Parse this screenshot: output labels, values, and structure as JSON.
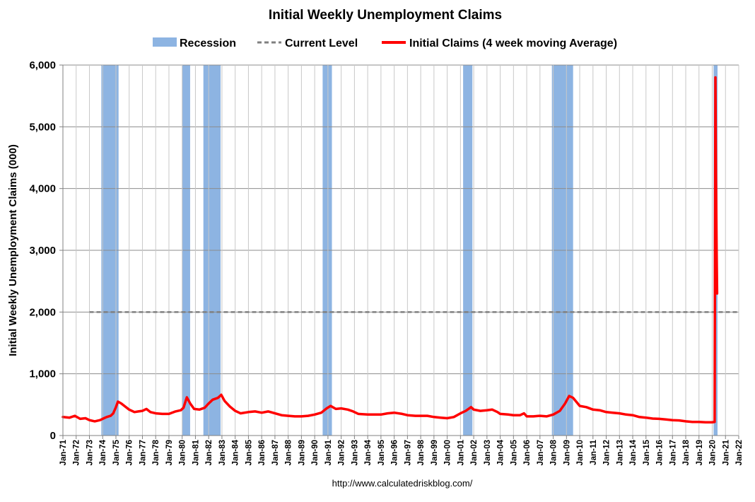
{
  "chart_data": {
    "type": "line",
    "title": "Initial Weekly Unemployment Claims",
    "ylabel": "Initial Weekly Unemployment Claims (000)",
    "xlabel": "",
    "source": "http://www.calculatedriskblog.com/",
    "ylim": [
      0,
      6000
    ],
    "yticks": [
      "0",
      "1,000",
      "2,000",
      "3,000",
      "4,000",
      "5,000",
      "6,000"
    ],
    "xlim": [
      1971.0,
      2022.0
    ],
    "xticks": [
      "Jan-71",
      "Jan-72",
      "Jan-73",
      "Jan-74",
      "Jan-75",
      "Jan-76",
      "Jan-77",
      "Jan-78",
      "Jan-79",
      "Jan-80",
      "Jan-81",
      "Jan-82",
      "Jan-83",
      "Jan-84",
      "Jan-85",
      "Jan-86",
      "Jan-87",
      "Jan-88",
      "Jan-89",
      "Jan-90",
      "Jan-91",
      "Jan-92",
      "Jan-93",
      "Jan-94",
      "Jan-95",
      "Jan-96",
      "Jan-97",
      "Jan-98",
      "Jan-99",
      "Jan-00",
      "Jan-01",
      "Jan-02",
      "Jan-03",
      "Jan-04",
      "Jan-05",
      "Jan-06",
      "Jan-07",
      "Jan-08",
      "Jan-09",
      "Jan-10",
      "Jan-11",
      "Jan-12",
      "Jan-13",
      "Jan-14",
      "Jan-15",
      "Jan-16",
      "Jan-17",
      "Jan-18",
      "Jan-19",
      "Jan-20",
      "Jan-21",
      "Jan-22"
    ],
    "grid": true,
    "legend_position": "top",
    "legend": [
      {
        "label": "Recession",
        "type": "band",
        "color": "#8db4e2"
      },
      {
        "label": "Current Level",
        "type": "dashed-line",
        "color": "#808080"
      },
      {
        "label": "Initial Claims (4 week moving Average)",
        "type": "line",
        "color": "#ff0000"
      }
    ],
    "recessions": [
      [
        1973.9,
        1975.2
      ],
      [
        1980.0,
        1980.6
      ],
      [
        1981.6,
        1982.9
      ],
      [
        1990.6,
        1991.3
      ],
      [
        2001.2,
        2001.9
      ],
      [
        2007.9,
        2009.5
      ],
      [
        2020.1,
        2020.4
      ]
    ],
    "current_level": {
      "value": 2000,
      "x_start": 1973.0,
      "x_end": 2022.0
    },
    "series": [
      {
        "name": "Initial Claims (4 week moving Average)",
        "color": "#ff0000",
        "points": [
          [
            1971.0,
            300
          ],
          [
            1971.5,
            290
          ],
          [
            1971.9,
            320
          ],
          [
            1972.3,
            270
          ],
          [
            1972.7,
            280
          ],
          [
            1973.0,
            250
          ],
          [
            1973.4,
            230
          ],
          [
            1973.8,
            250
          ],
          [
            1974.0,
            270
          ],
          [
            1974.3,
            300
          ],
          [
            1974.6,
            320
          ],
          [
            1974.8,
            360
          ],
          [
            1975.0,
            460
          ],
          [
            1975.15,
            550
          ],
          [
            1975.4,
            520
          ],
          [
            1975.7,
            470
          ],
          [
            1976.0,
            420
          ],
          [
            1976.4,
            380
          ],
          [
            1976.7,
            390
          ],
          [
            1977.0,
            400
          ],
          [
            1977.3,
            430
          ],
          [
            1977.6,
            380
          ],
          [
            1978.0,
            360
          ],
          [
            1978.5,
            350
          ],
          [
            1979.0,
            350
          ],
          [
            1979.5,
            390
          ],
          [
            1979.9,
            410
          ],
          [
            1980.1,
            450
          ],
          [
            1980.35,
            620
          ],
          [
            1980.6,
            520
          ],
          [
            1980.9,
            430
          ],
          [
            1981.3,
            420
          ],
          [
            1981.7,
            450
          ],
          [
            1982.0,
            520
          ],
          [
            1982.3,
            580
          ],
          [
            1982.7,
            610
          ],
          [
            1982.95,
            660
          ],
          [
            1983.2,
            560
          ],
          [
            1983.6,
            470
          ],
          [
            1984.0,
            400
          ],
          [
            1984.4,
            360
          ],
          [
            1985.0,
            380
          ],
          [
            1985.5,
            390
          ],
          [
            1986.0,
            370
          ],
          [
            1986.5,
            390
          ],
          [
            1987.0,
            360
          ],
          [
            1987.5,
            330
          ],
          [
            1988.0,
            320
          ],
          [
            1988.5,
            310
          ],
          [
            1989.0,
            310
          ],
          [
            1989.5,
            320
          ],
          [
            1990.0,
            340
          ],
          [
            1990.5,
            370
          ],
          [
            1990.9,
            440
          ],
          [
            1991.2,
            480
          ],
          [
            1991.6,
            430
          ],
          [
            1992.0,
            440
          ],
          [
            1992.5,
            420
          ],
          [
            1992.9,
            390
          ],
          [
            1993.3,
            350
          ],
          [
            1994.0,
            340
          ],
          [
            1994.5,
            340
          ],
          [
            1995.0,
            340
          ],
          [
            1995.5,
            360
          ],
          [
            1996.0,
            370
          ],
          [
            1996.6,
            350
          ],
          [
            1997.0,
            330
          ],
          [
            1997.6,
            320
          ],
          [
            1998.0,
            320
          ],
          [
            1998.5,
            320
          ],
          [
            1999.0,
            300
          ],
          [
            1999.5,
            290
          ],
          [
            2000.0,
            280
          ],
          [
            2000.5,
            300
          ],
          [
            2001.0,
            360
          ],
          [
            2001.4,
            400
          ],
          [
            2001.8,
            460
          ],
          [
            2002.0,
            420
          ],
          [
            2002.5,
            400
          ],
          [
            2003.0,
            410
          ],
          [
            2003.4,
            420
          ],
          [
            2003.8,
            380
          ],
          [
            2004.0,
            350
          ],
          [
            2004.6,
            340
          ],
          [
            2005.0,
            330
          ],
          [
            2005.5,
            330
          ],
          [
            2005.8,
            360
          ],
          [
            2006.0,
            310
          ],
          [
            2006.5,
            310
          ],
          [
            2007.0,
            320
          ],
          [
            2007.5,
            310
          ],
          [
            2008.0,
            340
          ],
          [
            2008.5,
            400
          ],
          [
            2008.9,
            520
          ],
          [
            2009.2,
            640
          ],
          [
            2009.5,
            610
          ],
          [
            2010.0,
            480
          ],
          [
            2010.5,
            460
          ],
          [
            2011.0,
            420
          ],
          [
            2011.5,
            410
          ],
          [
            2012.0,
            380
          ],
          [
            2012.5,
            370
          ],
          [
            2013.0,
            360
          ],
          [
            2013.5,
            340
          ],
          [
            2014.0,
            330
          ],
          [
            2014.5,
            300
          ],
          [
            2015.0,
            290
          ],
          [
            2015.5,
            275
          ],
          [
            2016.0,
            270
          ],
          [
            2016.5,
            260
          ],
          [
            2017.0,
            250
          ],
          [
            2017.5,
            245
          ],
          [
            2018.0,
            230
          ],
          [
            2018.5,
            220
          ],
          [
            2019.0,
            220
          ],
          [
            2019.5,
            215
          ],
          [
            2020.0,
            215
          ],
          [
            2020.18,
            220
          ],
          [
            2020.21,
            3000
          ],
          [
            2020.24,
            5800
          ],
          [
            2020.28,
            4200
          ],
          [
            2020.33,
            3000
          ],
          [
            2020.37,
            2300
          ]
        ]
      }
    ]
  }
}
